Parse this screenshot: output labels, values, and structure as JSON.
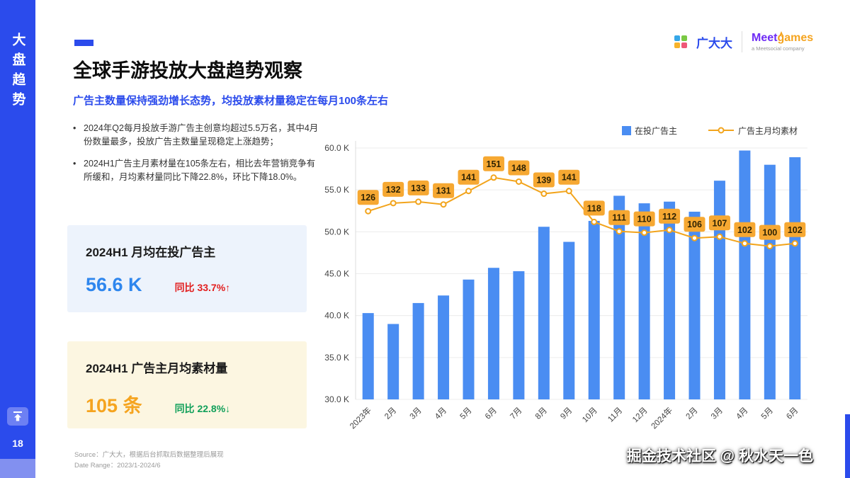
{
  "colors": {
    "primary_blue": "#2b4bec",
    "bar_blue": "#4a8df2",
    "line_orange": "#f2a41c",
    "label_bg": "#f6a832",
    "value_blue": "#2e86ee",
    "delta_red": "#e21f1f",
    "value_orange": "#f5a41f",
    "delta_green": "#11a05a"
  },
  "sidebar": {
    "vertical_title": "大盘趋势",
    "page_number": "18"
  },
  "brand": {
    "gdd": "广大大",
    "meet": "Meet",
    "games": "games",
    "meet_sub": "a Meetsocial company"
  },
  "header": {
    "title": "全球手游投放大盘趋势观察",
    "subtitle": "广告主数量保持强劲增长态势，均投放素材量稳定在每月100条左右"
  },
  "bullets": [
    "2024年Q2每月投放手游广告主创意均超过5.5万名，其中4月份数量最多，投放广告主数量呈现稳定上涨趋势；",
    "2024H1广告主月素材量在105条左右，相比去年营销竞争有所缓和，月均素材量同比下降22.8%，环比下降18.0%。"
  ],
  "cards": [
    {
      "title": "2024H1 月均在投广告主",
      "value": "56.6 K",
      "delta": "同比 33.7%↑"
    },
    {
      "title": "2024H1 广告主月均素材量",
      "value": "105 条",
      "delta": "同比 22.8%↓"
    }
  ],
  "source": {
    "line1": "Source：广大大，根据后台抓取后数据整理后展现",
    "line2": "Date Range：2023/1-2024/6"
  },
  "watermark": "掘金技术社区 @ 秋水天一色",
  "chart_data": {
    "type": "bar+line",
    "categories": [
      "2023年",
      "2月",
      "3月",
      "4月",
      "5月",
      "6月",
      "7月",
      "8月",
      "9月",
      "10月",
      "11月",
      "12月",
      "2024年",
      "2月",
      "3月",
      "4月",
      "5月",
      "6月"
    ],
    "series": [
      {
        "name": "在投广告主",
        "type": "bar",
        "unit": "K",
        "values": [
          40.3,
          39.0,
          41.5,
          42.4,
          44.3,
          45.7,
          45.3,
          50.6,
          48.8,
          51.3,
          54.3,
          53.4,
          53.6,
          52.4,
          56.1,
          59.7,
          58.0,
          58.9
        ]
      },
      {
        "name": "广告主月均素材",
        "type": "line",
        "values": [
          126,
          132,
          133,
          131,
          141,
          151,
          148,
          139,
          141,
          118,
          111,
          110,
          112,
          106,
          107,
          102,
          100,
          102
        ]
      }
    ],
    "y_axis": {
      "min": 30,
      "max": 60,
      "step": 5,
      "tick_suffix": " K"
    },
    "line_axis": {
      "min": -14,
      "max": 173
    },
    "legend_position": "top-right",
    "grid": true,
    "colors": {
      "bar": "#4a8df2",
      "line": "#f2a41c",
      "label_bg": "#f6a832"
    }
  }
}
